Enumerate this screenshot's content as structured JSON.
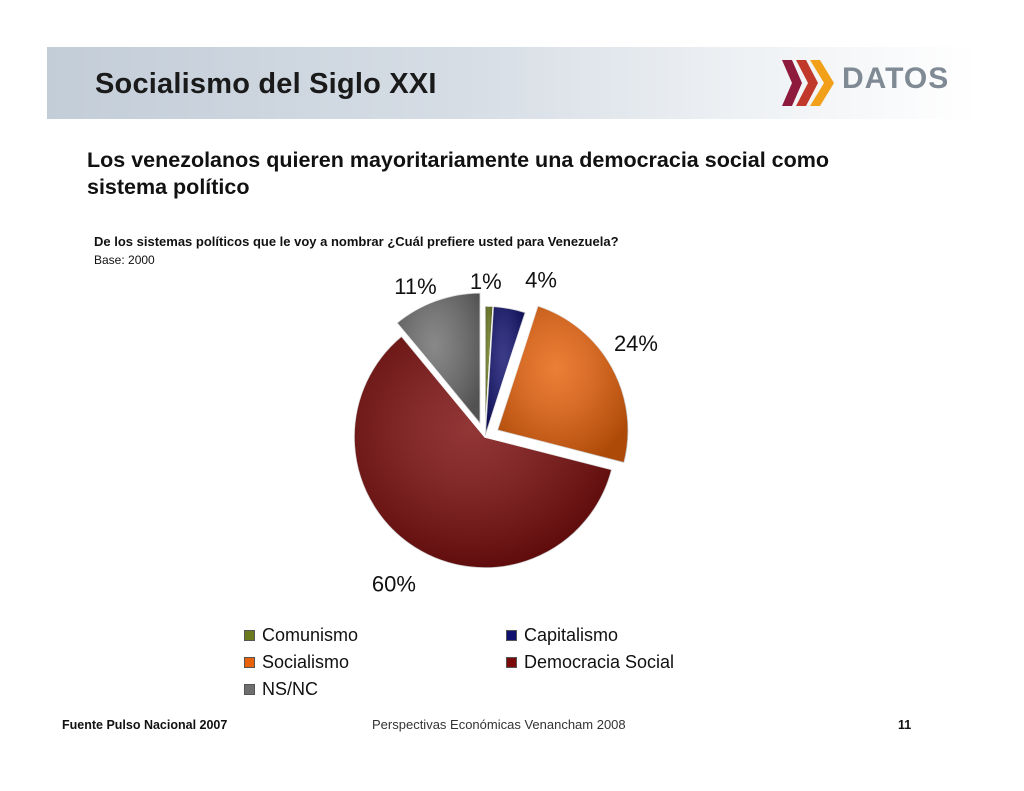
{
  "slide": {
    "title": "Socialismo del Siglo XXI",
    "logo_text": "DATOS",
    "headline": "Los venezolanos quieren mayoritariamente una democracia social como sistema político",
    "question": "De los sistemas políticos que le voy a nombrar ¿Cuál prefiere usted para Venezuela?",
    "base": "Base: 2000"
  },
  "chart_data": {
    "type": "pie",
    "title": "",
    "unit": "%",
    "categories": [
      "Comunismo",
      "Capitalismo",
      "Socialismo",
      "Democracia Social",
      "NS/NC"
    ],
    "values": [
      1,
      4,
      24,
      60,
      11
    ],
    "data_labels": [
      "1%",
      "4%",
      "24%",
      "60%",
      "11%"
    ],
    "colors": [
      "#6b7a1e",
      "#10106e",
      "#e8620a",
      "#7a0a0a",
      "#6e6e6e"
    ],
    "exploded": [
      "Socialismo",
      "NS/NC"
    ],
    "legend_position": "bottom"
  },
  "footer": {
    "source": "Fuente Pulso Nacional 2007",
    "center": "Perspectivas Económicas Venancham 2008",
    "page": "11"
  },
  "logo_colors": [
    "#f2a01a",
    "#c0392b",
    "#8e1b3d"
  ]
}
